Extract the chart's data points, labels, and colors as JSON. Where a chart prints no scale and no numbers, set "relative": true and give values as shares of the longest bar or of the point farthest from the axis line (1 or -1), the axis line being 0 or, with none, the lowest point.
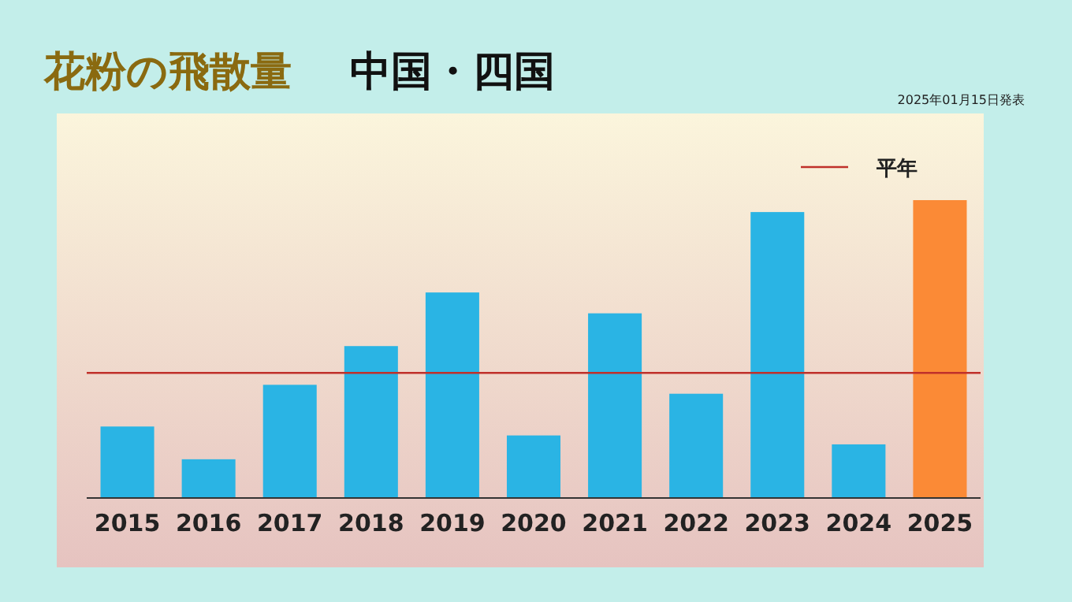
{
  "chart_data": {
    "type": "bar",
    "title": "花粉の飛散量",
    "subtitle": "中国・四国",
    "relative": true,
    "categories": [
      "2015",
      "2016",
      "2017",
      "2018",
      "2019",
      "2020",
      "2021",
      "2022",
      "2023",
      "2024",
      "2025"
    ],
    "values": [
      0.24,
      0.13,
      0.38,
      0.51,
      0.69,
      0.21,
      0.62,
      0.35,
      0.96,
      0.18,
      1
    ],
    "colors": [
      "#2ab4e4",
      "#2ab4e4",
      "#2ab4e4",
      "#2ab4e4",
      "#2ab4e4",
      "#2ab4e4",
      "#2ab4e4",
      "#2ab4e4",
      "#2ab4e4",
      "#2ab4e4",
      "#fb8a36"
    ],
    "ref_lines": [
      {
        "axis": "y",
        "value": 0.42,
        "label": "平年",
        "color": "#c0302a"
      }
    ],
    "legend": "top right",
    "annotations": [
      "2025年01月15日発表"
    ]
  }
}
